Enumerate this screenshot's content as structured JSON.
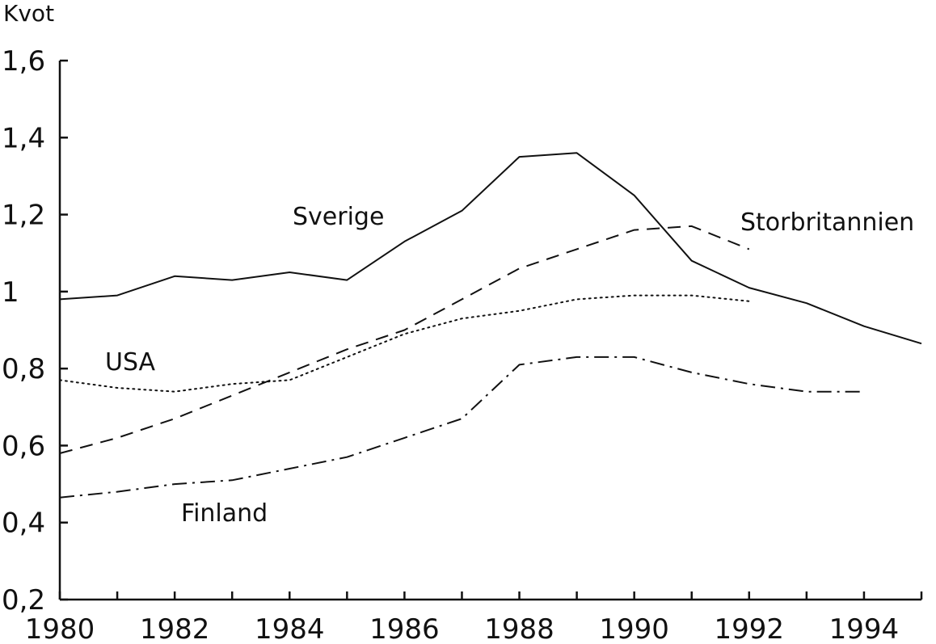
{
  "chart_data": {
    "type": "line",
    "title": "",
    "xlabel": "",
    "ylabel": "Kvot",
    "xlim": [
      1980,
      1995
    ],
    "ylim": [
      0.2,
      1.6
    ],
    "x_ticks": [
      "1980",
      "1982",
      "1984",
      "1986",
      "1988",
      "1990",
      "1992",
      "1994"
    ],
    "y_ticks": [
      {
        "value": 0.2,
        "label": "0,2"
      },
      {
        "value": 0.4,
        "label": "0,4"
      },
      {
        "value": 0.6,
        "label": "0,6"
      },
      {
        "value": 0.8,
        "label": "0,8"
      },
      {
        "value": 1.0,
        "label": "1"
      },
      {
        "value": 1.2,
        "label": "1,2"
      },
      {
        "value": 1.4,
        "label": "1,4"
      },
      {
        "value": 1.6,
        "label": "1,6"
      }
    ],
    "grid": false,
    "series": [
      {
        "name": "Sverige",
        "style": "solid",
        "x": [
          1980,
          1981,
          1982,
          1983,
          1984,
          1985,
          1986,
          1987,
          1988,
          1989,
          1990,
          1991,
          1992,
          1993,
          1994,
          1995
        ],
        "y": [
          0.98,
          0.99,
          1.04,
          1.03,
          1.05,
          1.03,
          1.13,
          1.21,
          1.35,
          1.36,
          1.25,
          1.08,
          1.01,
          0.97,
          0.91,
          0.865
        ]
      },
      {
        "name": "Storbritannien",
        "style": "dashed",
        "x": [
          1980,
          1981,
          1982,
          1983,
          1984,
          1985,
          1986,
          1987,
          1988,
          1989,
          1990,
          1991,
          1992
        ],
        "y": [
          0.58,
          0.62,
          0.67,
          0.73,
          0.79,
          0.85,
          0.9,
          0.98,
          1.06,
          1.11,
          1.16,
          1.17,
          1.11
        ]
      },
      {
        "name": "USA",
        "style": "dotted",
        "x": [
          1980,
          1981,
          1982,
          1983,
          1984,
          1985,
          1986,
          1987,
          1988,
          1989,
          1990,
          1991,
          1992
        ],
        "y": [
          0.77,
          0.75,
          0.74,
          0.76,
          0.77,
          0.83,
          0.89,
          0.93,
          0.95,
          0.98,
          0.99,
          0.99,
          0.975
        ]
      },
      {
        "name": "Finland",
        "style": "dashdot",
        "x": [
          1980,
          1981,
          1982,
          1983,
          1984,
          1985,
          1986,
          1987,
          1988,
          1989,
          1990,
          1991,
          1992,
          1993,
          1994
        ],
        "y": [
          0.465,
          0.48,
          0.5,
          0.51,
          0.54,
          0.57,
          0.62,
          0.67,
          0.81,
          0.83,
          0.83,
          0.79,
          0.76,
          0.74,
          0.74
        ]
      }
    ],
    "colors": {
      "line": "#111111",
      "background": "#ffffff"
    }
  }
}
